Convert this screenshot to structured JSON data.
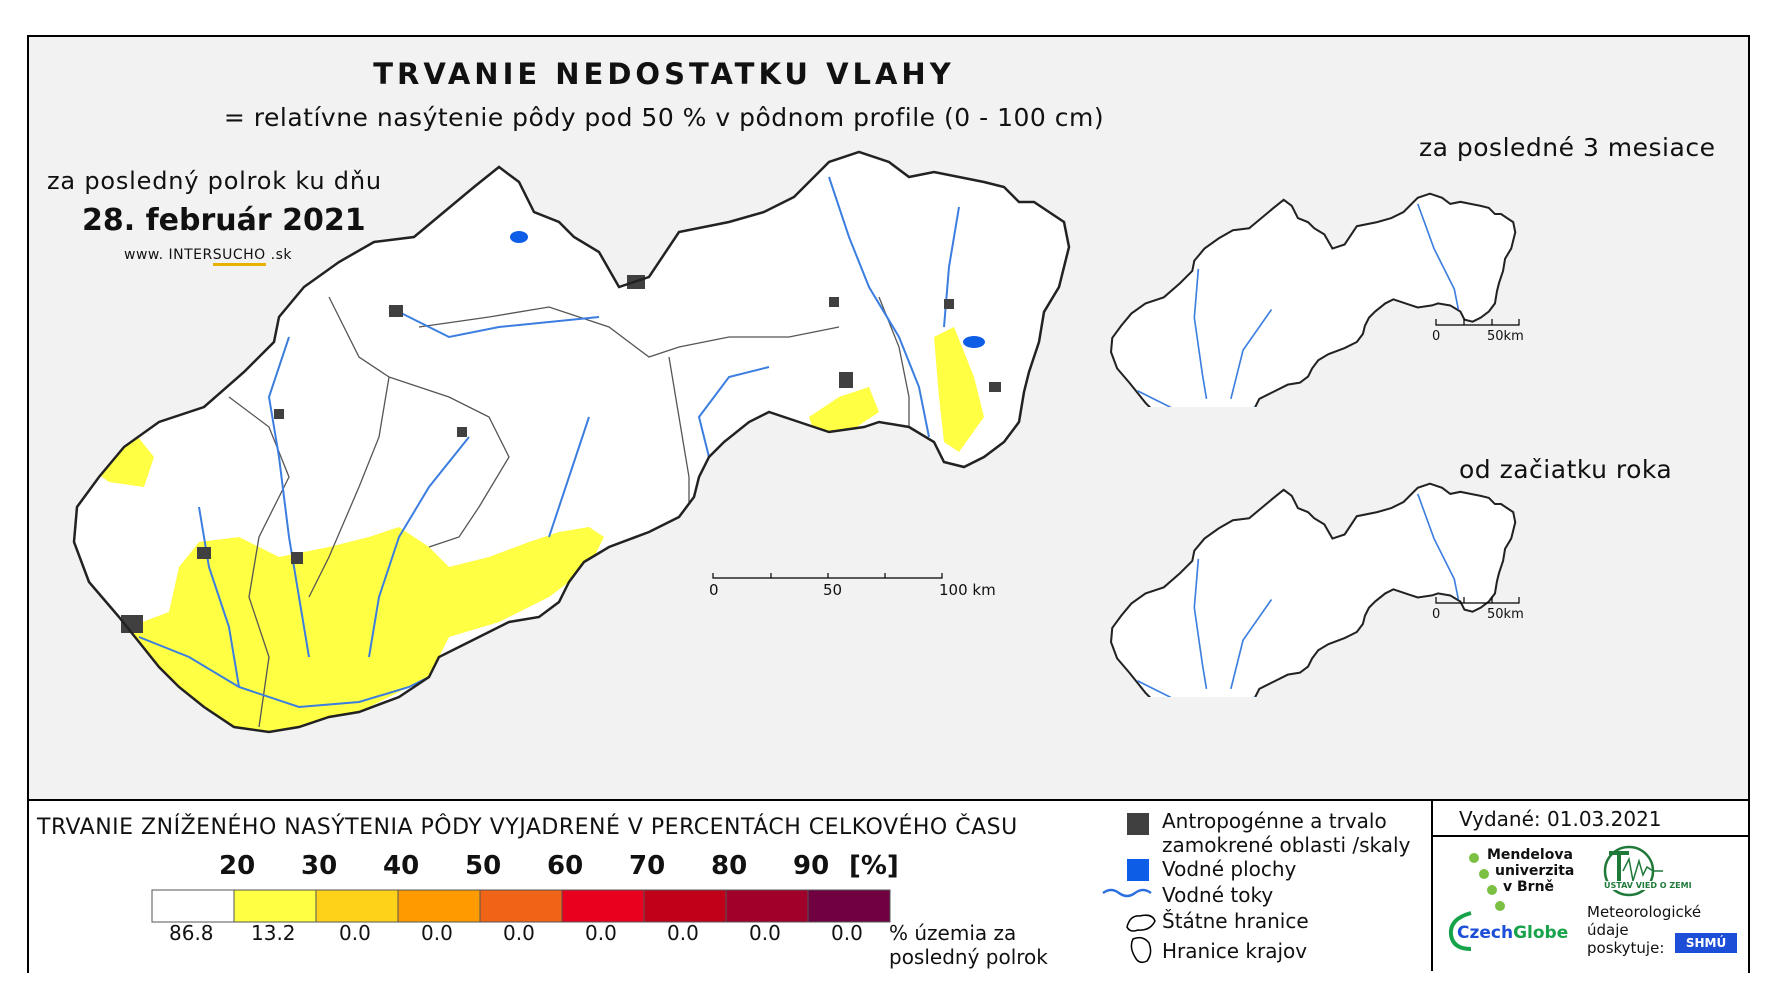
{
  "title": "TRVANIE NEDOSTATKU VLAHY",
  "subtitle": "= relatívne nasýtenie pôdy pod 50 % v pôdnom profile (0 - 100 cm)",
  "main_map": {
    "period_label": "za posledný polrok ku dňu",
    "date": "28. február 2021",
    "website_prefix": "www. INTER",
    "website_brand": "SUCHO",
    "website_suffix": " .sk",
    "scale": {
      "t0": "0",
      "t50": "50",
      "t100": "100 km"
    }
  },
  "inset_3m": {
    "label": "za posledné 3 mesiace",
    "scale": {
      "t0": "0",
      "t50": "50km"
    }
  },
  "inset_year": {
    "label": "od začiatku roka",
    "scale": {
      "t0": "0",
      "t50": "50km"
    }
  },
  "legend": {
    "header": "TRVANIE ZNÍŽENÉHO NASÝTENIA PÔDY VYJADRENÉ V PERCENTÁCH CELKOVÉHO ČASU",
    "class_labels": [
      "20",
      "30",
      "40",
      "50",
      "60",
      "70",
      "80",
      "90",
      "[%]"
    ],
    "class_colors": [
      "#ffffff",
      "#ffff44",
      "#ffd21a",
      "#ff9a00",
      "#f06418",
      "#e8001e",
      "#c00018",
      "#a0002a",
      "#700040"
    ],
    "percentages": [
      "86.8",
      "13.2",
      "0.0",
      "0.0",
      "0.0",
      "0.0",
      "0.0",
      "0.0",
      "0.0"
    ],
    "pct_note": "% územia za posledný polrok",
    "keys": {
      "urban": "Antropogénne a trvalo zamokrené oblasti /skaly",
      "water_bodies": "Vodné plochy",
      "rivers": "Vodné toky",
      "state_border": "Štátne hranice",
      "regions": "Hranice krajov"
    },
    "key_colors": {
      "urban": "#404040",
      "water": "#0d5de6",
      "river": "#3b7ee0"
    }
  },
  "issued": "Vydané: 01.03.2021",
  "partners": {
    "mendel": [
      "Mendelova",
      "univerzita",
      "v Brně"
    ],
    "czechglobe_czech": "Czech",
    "czechglobe_globe": "Globe",
    "uvgz": "ÚSTAV VIED O ZEMI",
    "meteo": [
      "Meteorologické",
      "údaje",
      "poskytuje:"
    ],
    "shmu": "SHMÚ"
  },
  "map_colors": {
    "yellow": "#ffff44",
    "outline": "#222222",
    "region": "#555555"
  }
}
